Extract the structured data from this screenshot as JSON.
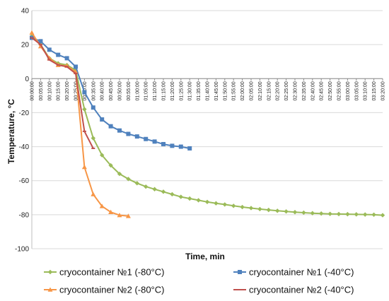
{
  "chart_data": {
    "type": "line",
    "xlabel": "Time, min",
    "ylabel": "Temperature, °C",
    "ylim": [
      -100,
      40
    ],
    "yticks": [
      40,
      20,
      0,
      -20,
      -40,
      -60,
      -80,
      -100
    ],
    "grid": true,
    "legend_position": "bottom",
    "x_categories": [
      "00:00:00",
      "00:05:00",
      "00:10:00",
      "00:15:00",
      "00:20:00",
      "00:25:00",
      "00:30:00",
      "00:35:00",
      "00:40:00",
      "00:45:00",
      "00:50:00",
      "00:55:00",
      "01:00:00",
      "01:05:00",
      "01:10:00",
      "01:15:00",
      "01:20:00",
      "01:25:00",
      "01:30:00",
      "01:35:00",
      "01:40:00",
      "01:45:00",
      "01:50:00",
      "01:55:00",
      "02:00:00",
      "02:05:00",
      "02:10:00",
      "02:15:00",
      "02:20:00",
      "02:25:00",
      "02:30:00",
      "02:35:00",
      "02:40:00",
      "02:45:00",
      "02:50:00",
      "02:55:00",
      "03:00:00",
      "03:05:00",
      "03:10:00",
      "03:15:00",
      "03:20:00"
    ],
    "series": [
      {
        "name": "cryocontainer №1 (-80°C)",
        "color": "#9BBB59",
        "marker": "diamond",
        "x": [
          0,
          5,
          10,
          15,
          20,
          25,
          30,
          35,
          40,
          45,
          50,
          55,
          60,
          65,
          70,
          75,
          80,
          85,
          90,
          95,
          100,
          105,
          110,
          115,
          120,
          125,
          130,
          135,
          140,
          145,
          150,
          155,
          160,
          165,
          170,
          175,
          180,
          185,
          190,
          195,
          200
        ],
        "y": [
          25,
          20,
          12,
          9,
          8,
          5,
          -18,
          -35,
          -45,
          -51,
          -56,
          -59,
          -61.5,
          -63.5,
          -65,
          -66.5,
          -68,
          -69.5,
          -70.5,
          -71.5,
          -72.5,
          -73.3,
          -74,
          -74.8,
          -75.5,
          -76.1,
          -76.7,
          -77.2,
          -77.7,
          -78.1,
          -78.5,
          -78.8,
          -79.1,
          -79.3,
          -79.5,
          -79.6,
          -79.7,
          -79.8,
          -79.9,
          -80,
          -80.3
        ]
      },
      {
        "name": "cryocontainer №1 (-40°C)",
        "color": "#4F81BD",
        "marker": "square",
        "x": [
          0,
          5,
          10,
          15,
          20,
          25,
          30,
          35,
          40,
          45,
          50,
          55,
          60,
          65,
          70,
          75,
          80,
          85,
          90
        ],
        "y": [
          24,
          22,
          17,
          14,
          12,
          7,
          -8,
          -17,
          -24,
          -28,
          -30.5,
          -32.5,
          -34,
          -35.5,
          -37,
          -38.5,
          -39.5,
          -40,
          -41
        ]
      },
      {
        "name": "cryocontainer №2 (-80°C)",
        "color": "#F79646",
        "marker": "triangle",
        "x": [
          0,
          5,
          10,
          15,
          20,
          25,
          30,
          35,
          40,
          45,
          50,
          55
        ],
        "y": [
          27,
          19,
          12,
          8,
          7.5,
          4,
          -52,
          -68,
          -75,
          -78.5,
          -80.3,
          -80.8
        ]
      },
      {
        "name": "cryocontainer №2 (-40°C)",
        "color": "#C0504D",
        "marker": "dash",
        "x": [
          0,
          5,
          10,
          15,
          20,
          25,
          30,
          35
        ],
        "y": [
          24,
          20,
          11,
          8,
          7,
          3,
          -31,
          -41
        ]
      }
    ]
  }
}
